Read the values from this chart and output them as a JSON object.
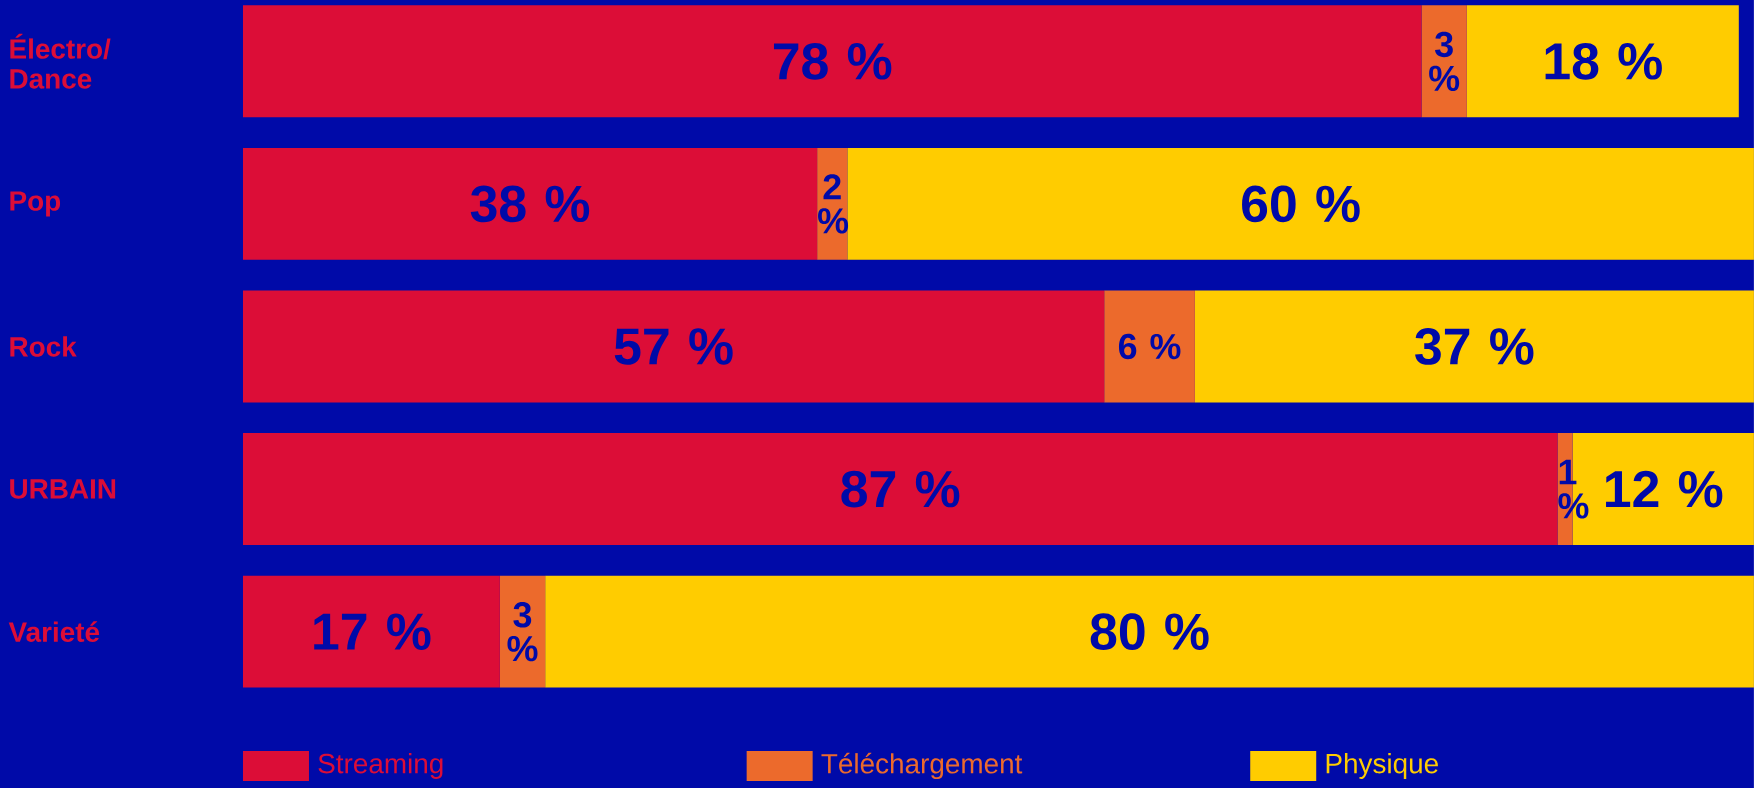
{
  "chart_data": {
    "type": "bar",
    "orientation": "horizontal",
    "stacked": true,
    "categories": [
      "Électro/ Dance",
      "Pop",
      "Rock",
      "URBAIN",
      "Varieté"
    ],
    "xlim": [
      0,
      100
    ],
    "tick_labels": "y",
    "legend": "bottom",
    "series": [
      {
        "name": "Streaming",
        "color": "#dc0d37",
        "values": [
          78,
          38,
          57,
          87,
          17
        ],
        "value_labels": [
          "78 %",
          "38 %",
          "57 %",
          "87 %",
          "17 %"
        ]
      },
      {
        "name": "Téléchargement",
        "color": "#ec6a2c",
        "values": [
          3,
          2,
          6,
          1,
          3
        ],
        "value_labels": [
          "3 %",
          "2 %",
          "6 %",
          "1 %",
          "3 %"
        ]
      },
      {
        "name": "Physique",
        "color": "#ffcc00",
        "values": [
          18,
          60,
          37,
          12,
          80
        ],
        "value_labels": [
          "18 %",
          "60 %",
          "37 %",
          "12 %",
          "80 %"
        ]
      }
    ]
  }
}
